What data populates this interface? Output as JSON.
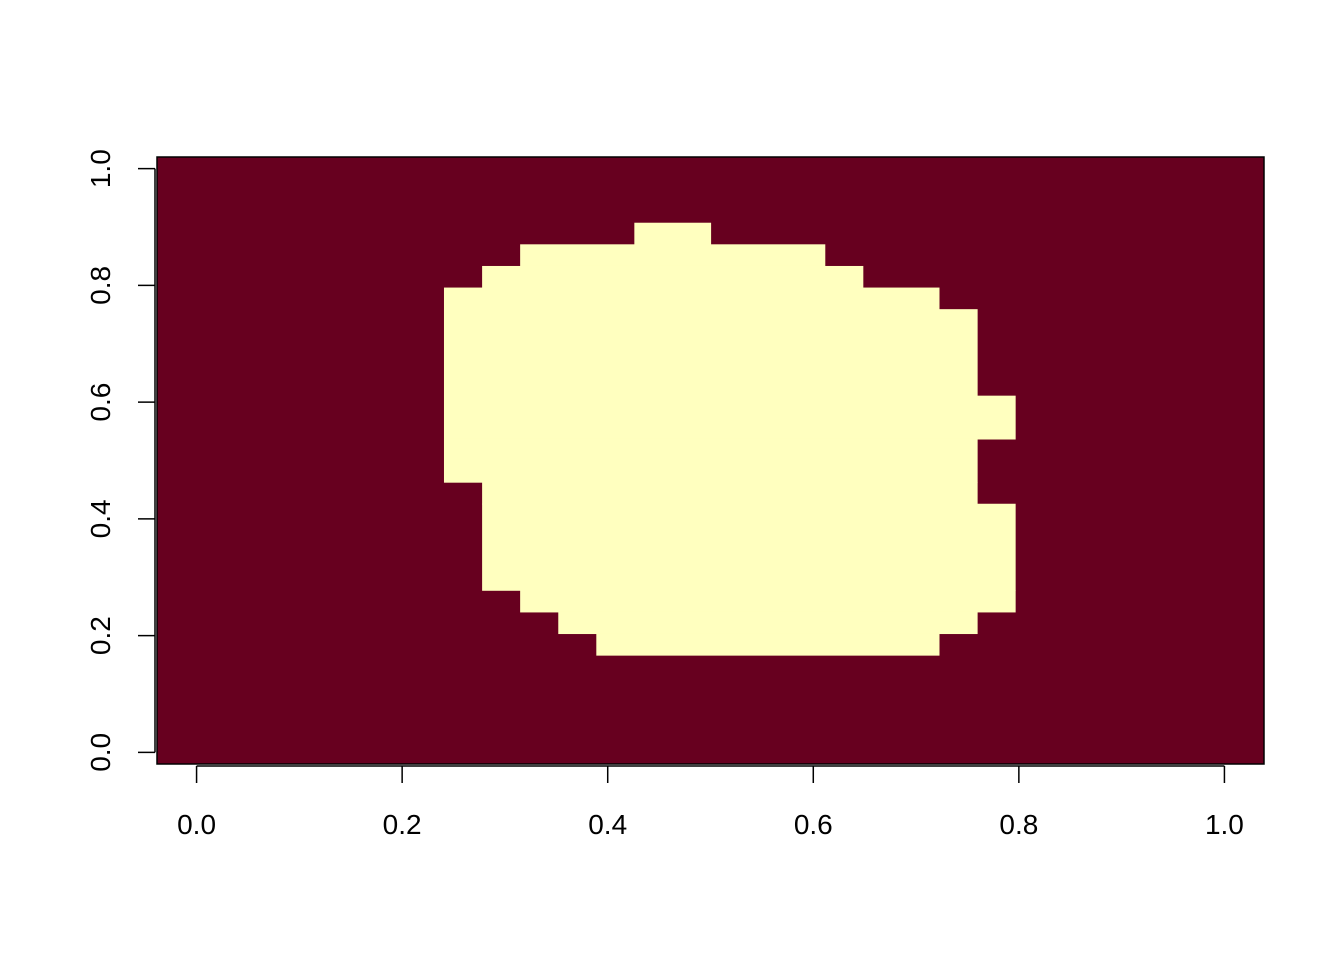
{
  "chart_data": {
    "type": "heatmap",
    "title": "",
    "xlabel": "",
    "ylabel": "",
    "xlim": [
      -0.0385,
      1.0385
    ],
    "ylim": [
      -0.02,
      1.02
    ],
    "x_ticks": [
      "0.0",
      "0.2",
      "0.4",
      "0.6",
      "0.8",
      "1.0"
    ],
    "y_ticks": [
      "0.0",
      "0.2",
      "0.4",
      "0.6",
      "0.8",
      "1.0"
    ],
    "grid": false,
    "legend": "none",
    "colors": {
      "background": "#67001F",
      "highlight": "#FFFFBF"
    },
    "cell_size": {
      "dx": 0.037,
      "dy": 0.037
    },
    "highlight_cells": [
      {
        "x0": 0.4259,
        "x1": 0.5,
        "y0": 0.8704,
        "y1": 0.9074
      },
      {
        "x0": 0.3148,
        "x1": 0.6111,
        "y0": 0.8333,
        "y1": 0.8704
      },
      {
        "x0": 0.2778,
        "x1": 0.6481,
        "y0": 0.7963,
        "y1": 0.8333
      },
      {
        "x0": 0.2407,
        "x1": 0.7222,
        "y0": 0.7593,
        "y1": 0.7963
      },
      {
        "x0": 0.2407,
        "x1": 0.7593,
        "y0": 0.6111,
        "y1": 0.7593
      },
      {
        "x0": 0.2407,
        "x1": 0.7963,
        "y0": 0.537,
        "y1": 0.6111
      },
      {
        "x0": 0.2407,
        "x1": 0.7593,
        "y0": 0.463,
        "y1": 0.537
      },
      {
        "x0": 0.2778,
        "x1": 0.7593,
        "y0": 0.4259,
        "y1": 0.463
      },
      {
        "x0": 0.2778,
        "x1": 0.7963,
        "y0": 0.2778,
        "y1": 0.4259
      },
      {
        "x0": 0.3148,
        "x1": 0.7963,
        "y0": 0.2407,
        "y1": 0.2778
      },
      {
        "x0": 0.3519,
        "x1": 0.7593,
        "y0": 0.2037,
        "y1": 0.2407
      },
      {
        "x0": 0.3889,
        "x1": 0.7222,
        "y0": 0.1667,
        "y1": 0.2037
      }
    ]
  }
}
